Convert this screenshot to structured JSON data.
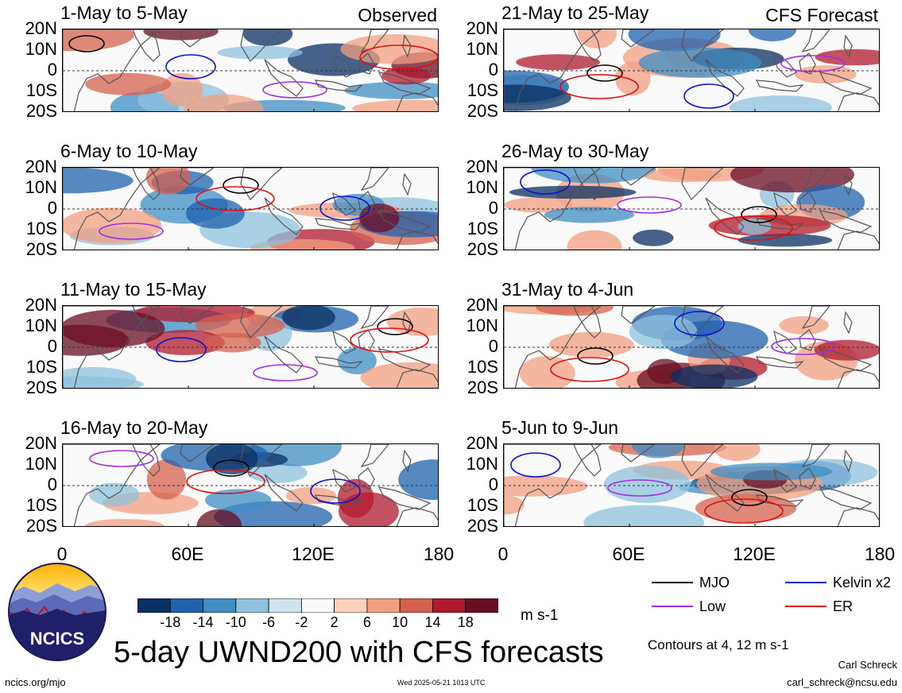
{
  "panels": [
    {
      "title": "1-May to 5-May",
      "tag": "Observed"
    },
    {
      "title": "21-May to 25-May",
      "tag": "CFS Forecast"
    },
    {
      "title": "6-May to 10-May",
      "tag": ""
    },
    {
      "title": "26-May to 30-May",
      "tag": ""
    },
    {
      "title": "11-May to 15-May",
      "tag": ""
    },
    {
      "title": "31-May to 4-Jun",
      "tag": ""
    },
    {
      "title": "16-May to 20-May",
      "tag": ""
    },
    {
      "title": "5-Jun to 9-Jun",
      "tag": ""
    }
  ],
  "lat_labels": [
    "20N",
    "10N",
    "0",
    "10S",
    "20S"
  ],
  "lon_labels": [
    "0",
    "60E",
    "120E",
    "180"
  ],
  "colorbar": {
    "labels": [
      "-18",
      "-14",
      "-10",
      "-6",
      "-2",
      "2",
      "6",
      "10",
      "14",
      "18"
    ],
    "colors": [
      "#0a2f62",
      "#1f62ad",
      "#3f8ec4",
      "#8fc1de",
      "#cfe3ef",
      "#fafafa",
      "#fbd2bd",
      "#f29f80",
      "#d5604d",
      "#b0192c",
      "#6a0e23"
    ],
    "units": "m s-1"
  },
  "legend": [
    {
      "label": "MJO",
      "color": "#000000"
    },
    {
      "label": "Kelvin x2",
      "color": "#1010d0"
    },
    {
      "label": "Low",
      "color": "#a030e0"
    },
    {
      "label": "ER",
      "color": "#e01010"
    }
  ],
  "contour_note": "Contours at 4, 12 m s-1",
  "main_title": "5-day UWND200 with CFS forecasts",
  "logo_text": "NCICS",
  "footer": {
    "url": "ncics.org/mjo",
    "timestamp": "Wed 2025-05-21 1013 UTC",
    "author": "Carl Schreck",
    "email": "carl_schreck@ncsu.edu"
  }
}
